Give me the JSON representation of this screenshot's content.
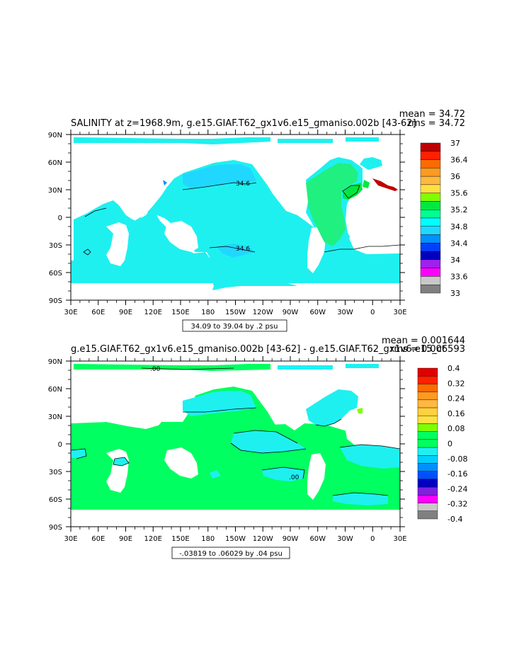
{
  "panels": [
    {
      "title": "SALINITY at z=1968.9m, g.e15.GIAF.T62_gx1v6.e15_gmaniso.002b [43-62]",
      "mean_label": "mean = 34.72",
      "rms_label": "rms = 34.72",
      "range_label": "34.09 to 39.04 by .2 psu",
      "lat_labels": [
        "90N",
        "60N",
        "30N",
        "0",
        "30S",
        "60S",
        "90S"
      ],
      "lon_labels": [
        "30E",
        "60E",
        "90E",
        "120E",
        "150E",
        "180",
        "150W",
        "120W",
        "90W",
        "60W",
        "30W",
        "0",
        "30E"
      ],
      "colorbar_labels": [
        "37",
        "36.4",
        "36",
        "35.6",
        "35.2",
        "34.8",
        "34.4",
        "34",
        "33.6",
        "33"
      ],
      "colorbar_colors": [
        "#c00000",
        "#ff2000",
        "#ff6a00",
        "#ff9a20",
        "#ffb840",
        "#ffe040",
        "#80ff00",
        "#00e840",
        "#00ff90",
        "#00ffff",
        "#20d8ff",
        "#0090ff",
        "#0040ff",
        "#0000c0",
        "#a020f0",
        "#ff00ff",
        "#c8c8c8",
        "#808080"
      ],
      "contour_labels": [
        "34.6",
        "34.6"
      ],
      "ocean_color": "#1ef0f0"
    },
    {
      "title": "g.e15.GIAF.T62_gx1v6.e15_gmaniso.002b [43-62] - g.e15.GIAF.T62_gx1v6.e15_ct",
      "mean_label": "mean = 0.001644",
      "rms_label": "rms = 0.006593",
      "range_label": "-.03819 to .06029 by .04 psu",
      "lat_labels": [
        "90N",
        "60N",
        "30N",
        "0",
        "30S",
        "60S",
        "90S"
      ],
      "lon_labels": [
        "30E",
        "60E",
        "90E",
        "120E",
        "150E",
        "180",
        "150W",
        "120W",
        "90W",
        "60W",
        "30W",
        "0",
        "30E"
      ],
      "colorbar_labels": [
        "0.4",
        "0.32",
        "0.24",
        "0.16",
        "0.08",
        "0",
        "-0.08",
        "-0.16",
        "-0.24",
        "-0.32",
        "-0.4"
      ],
      "colorbar_colors": [
        "#e00000",
        "#ff2000",
        "#ff6a00",
        "#ff9a20",
        "#ffb840",
        "#ffd040",
        "#ffe040",
        "#80ff00",
        "#00ff60",
        "#00ff60",
        "#1ef0f0",
        "#00d0ff",
        "#0090ff",
        "#0050ff",
        "#0000c0",
        "#8020e0",
        "#ff00ff",
        "#c8c8c8",
        "#808080"
      ],
      "contour_labels": [
        ".00",
        ".00"
      ],
      "ocean_color": "#00ff60",
      "negative_color": "#1ef0f0"
    }
  ]
}
